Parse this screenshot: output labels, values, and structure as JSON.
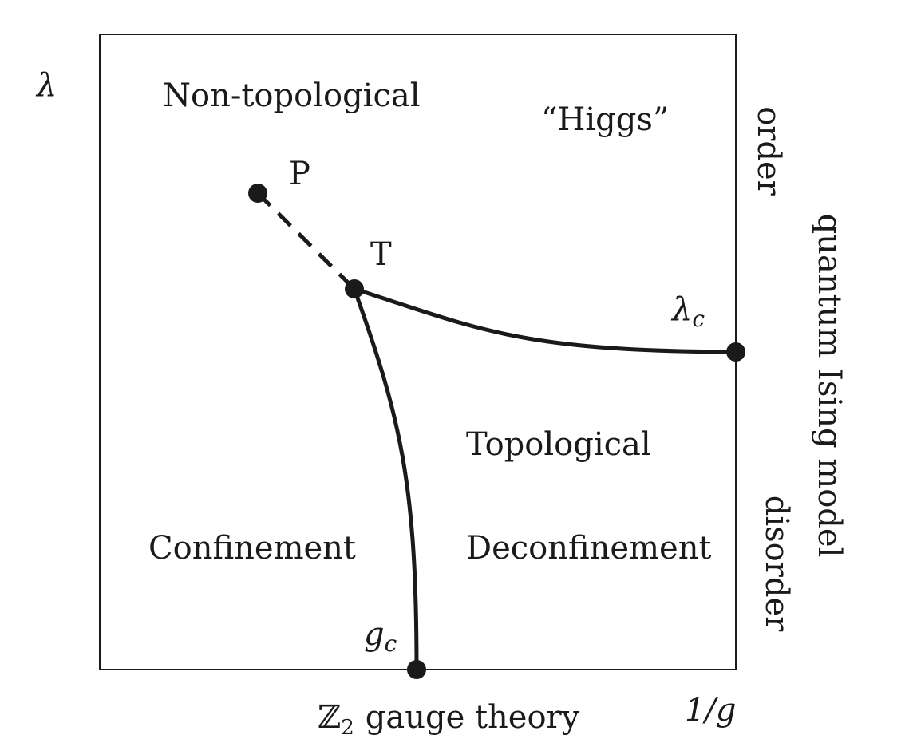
{
  "axes": {
    "y_label": "λ",
    "x_label": "1/g",
    "bottom_label_symbol": "ℤ",
    "bottom_label_subscript": "2",
    "bottom_label_rest": "gauge theory",
    "right_label": "quantum Ising model",
    "right_order": "order",
    "right_disorder": "disorder"
  },
  "regions": {
    "non_topological": "Non-topological",
    "higgs": "“Higgs”",
    "topological": "Topological",
    "confinement": "Confinement",
    "deconfinement": "Deconfinement"
  },
  "points": {
    "P": "P",
    "T": "T",
    "lambda_c_main": "λ",
    "lambda_c_sub": "c",
    "g_c_main": "g",
    "g_c_sub": "c"
  },
  "colors": {
    "line": "#1a1a1a",
    "background": "#ffffff"
  }
}
